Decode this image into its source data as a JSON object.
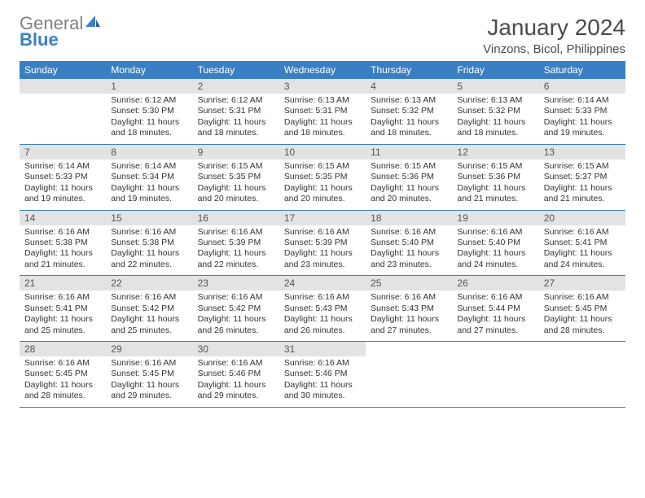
{
  "logo": {
    "gray": "General",
    "blue": "Blue"
  },
  "title": "January 2024",
  "location": "Vinzons, Bicol, Philippines",
  "colors": {
    "header_bg": "#3a7fc4",
    "header_text": "#ffffff",
    "daynum_bg": "#e3e3e3",
    "daynum_text": "#555555",
    "rule": "#3a7fc4",
    "body_text": "#333333",
    "logo_gray": "#808080",
    "logo_blue": "#3a7fc4"
  },
  "weekdays": [
    "Sunday",
    "Monday",
    "Tuesday",
    "Wednesday",
    "Thursday",
    "Friday",
    "Saturday"
  ],
  "weeks": [
    [
      null,
      {
        "n": "1",
        "sr": "6:12 AM",
        "ss": "5:30 PM",
        "dl": "11 hours and 18 minutes."
      },
      {
        "n": "2",
        "sr": "6:12 AM",
        "ss": "5:31 PM",
        "dl": "11 hours and 18 minutes."
      },
      {
        "n": "3",
        "sr": "6:13 AM",
        "ss": "5:31 PM",
        "dl": "11 hours and 18 minutes."
      },
      {
        "n": "4",
        "sr": "6:13 AM",
        "ss": "5:32 PM",
        "dl": "11 hours and 18 minutes."
      },
      {
        "n": "5",
        "sr": "6:13 AM",
        "ss": "5:32 PM",
        "dl": "11 hours and 18 minutes."
      },
      {
        "n": "6",
        "sr": "6:14 AM",
        "ss": "5:33 PM",
        "dl": "11 hours and 19 minutes."
      }
    ],
    [
      {
        "n": "7",
        "sr": "6:14 AM",
        "ss": "5:33 PM",
        "dl": "11 hours and 19 minutes."
      },
      {
        "n": "8",
        "sr": "6:14 AM",
        "ss": "5:34 PM",
        "dl": "11 hours and 19 minutes."
      },
      {
        "n": "9",
        "sr": "6:15 AM",
        "ss": "5:35 PM",
        "dl": "11 hours and 20 minutes."
      },
      {
        "n": "10",
        "sr": "6:15 AM",
        "ss": "5:35 PM",
        "dl": "11 hours and 20 minutes."
      },
      {
        "n": "11",
        "sr": "6:15 AM",
        "ss": "5:36 PM",
        "dl": "11 hours and 20 minutes."
      },
      {
        "n": "12",
        "sr": "6:15 AM",
        "ss": "5:36 PM",
        "dl": "11 hours and 21 minutes."
      },
      {
        "n": "13",
        "sr": "6:15 AM",
        "ss": "5:37 PM",
        "dl": "11 hours and 21 minutes."
      }
    ],
    [
      {
        "n": "14",
        "sr": "6:16 AM",
        "ss": "5:38 PM",
        "dl": "11 hours and 21 minutes."
      },
      {
        "n": "15",
        "sr": "6:16 AM",
        "ss": "5:38 PM",
        "dl": "11 hours and 22 minutes."
      },
      {
        "n": "16",
        "sr": "6:16 AM",
        "ss": "5:39 PM",
        "dl": "11 hours and 22 minutes."
      },
      {
        "n": "17",
        "sr": "6:16 AM",
        "ss": "5:39 PM",
        "dl": "11 hours and 23 minutes."
      },
      {
        "n": "18",
        "sr": "6:16 AM",
        "ss": "5:40 PM",
        "dl": "11 hours and 23 minutes."
      },
      {
        "n": "19",
        "sr": "6:16 AM",
        "ss": "5:40 PM",
        "dl": "11 hours and 24 minutes."
      },
      {
        "n": "20",
        "sr": "6:16 AM",
        "ss": "5:41 PM",
        "dl": "11 hours and 24 minutes."
      }
    ],
    [
      {
        "n": "21",
        "sr": "6:16 AM",
        "ss": "5:41 PM",
        "dl": "11 hours and 25 minutes."
      },
      {
        "n": "22",
        "sr": "6:16 AM",
        "ss": "5:42 PM",
        "dl": "11 hours and 25 minutes."
      },
      {
        "n": "23",
        "sr": "6:16 AM",
        "ss": "5:42 PM",
        "dl": "11 hours and 26 minutes."
      },
      {
        "n": "24",
        "sr": "6:16 AM",
        "ss": "5:43 PM",
        "dl": "11 hours and 26 minutes."
      },
      {
        "n": "25",
        "sr": "6:16 AM",
        "ss": "5:43 PM",
        "dl": "11 hours and 27 minutes."
      },
      {
        "n": "26",
        "sr": "6:16 AM",
        "ss": "5:44 PM",
        "dl": "11 hours and 27 minutes."
      },
      {
        "n": "27",
        "sr": "6:16 AM",
        "ss": "5:45 PM",
        "dl": "11 hours and 28 minutes."
      }
    ],
    [
      {
        "n": "28",
        "sr": "6:16 AM",
        "ss": "5:45 PM",
        "dl": "11 hours and 28 minutes."
      },
      {
        "n": "29",
        "sr": "6:16 AM",
        "ss": "5:45 PM",
        "dl": "11 hours and 29 minutes."
      },
      {
        "n": "30",
        "sr": "6:16 AM",
        "ss": "5:46 PM",
        "dl": "11 hours and 29 minutes."
      },
      {
        "n": "31",
        "sr": "6:16 AM",
        "ss": "5:46 PM",
        "dl": "11 hours and 30 minutes."
      },
      null,
      null,
      null
    ]
  ],
  "labels": {
    "sunrise": "Sunrise:",
    "sunset": "Sunset:",
    "daylight": "Daylight:"
  }
}
